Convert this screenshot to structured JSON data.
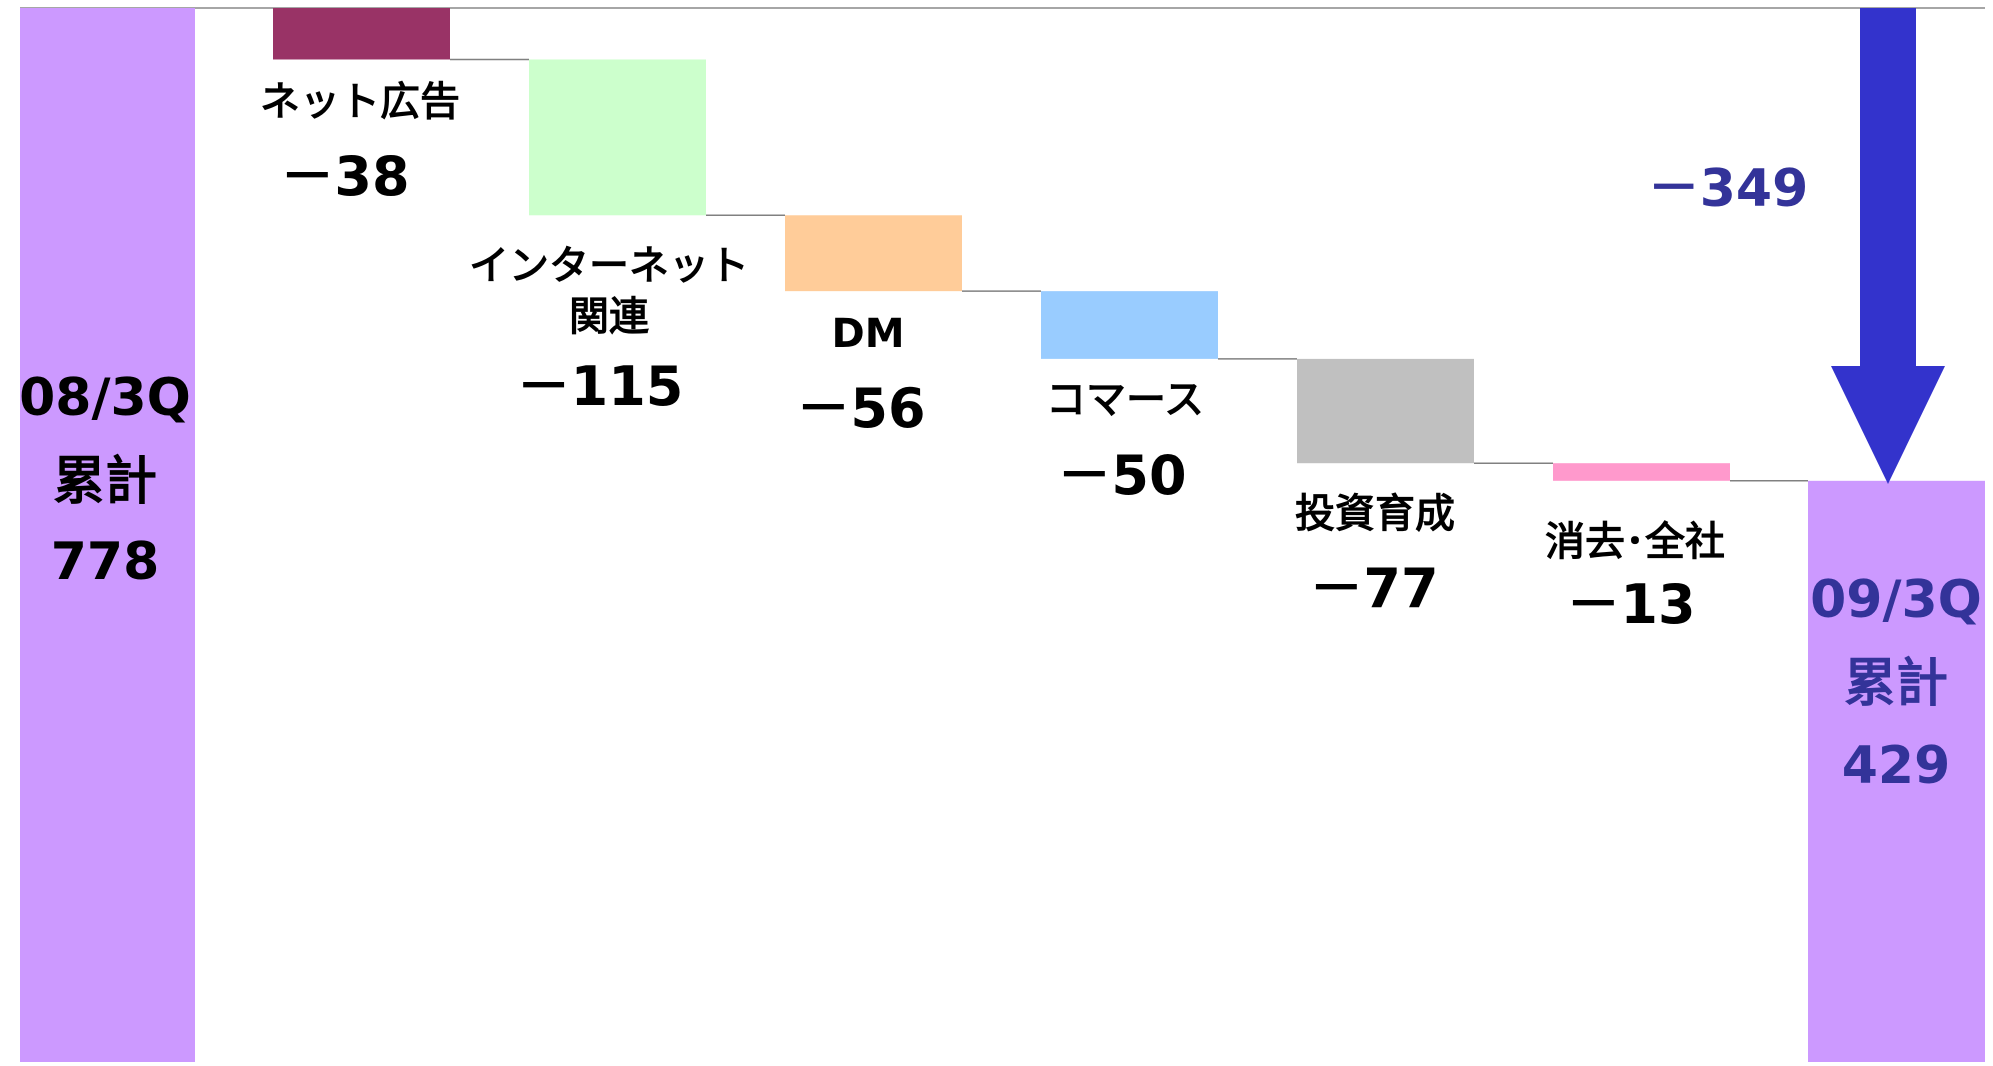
{
  "chart_data": {
    "type": "waterfall",
    "start": {
      "line1": "08/3Q",
      "line2": "累計",
      "value": 778,
      "value_label": "778",
      "color": "#cc99ff",
      "text_color": "#000000"
    },
    "end": {
      "line1": "09/3Q",
      "line2": "累計",
      "value": 429,
      "value_label": "429",
      "color": "#cc99ff",
      "text_color": "#333399"
    },
    "steps": [
      {
        "name_lines": [
          "ネット広告"
        ],
        "value": -38,
        "value_label": "－38",
        "color": "#993366"
      },
      {
        "name_lines": [
          "インターネット",
          "関連"
        ],
        "value": -115,
        "value_label": "－115",
        "color": "#ccffcc"
      },
      {
        "name_lines": [
          "DM"
        ],
        "value": -56,
        "value_label": "－56",
        "color": "#ffcc99"
      },
      {
        "name_lines": [
          "コマース"
        ],
        "value": -50,
        "value_label": "－50",
        "color": "#99ccff"
      },
      {
        "name_lines": [
          "投資育成"
        ],
        "value": -77,
        "value_label": "－77",
        "color": "#c0c0c0"
      },
      {
        "name_lines": [
          "消去･全社"
        ],
        "value": -13,
        "value_label": "－13",
        "color": "#ff99cc"
      }
    ],
    "total_change": {
      "value": -349,
      "label": "－349",
      "color": "#333399",
      "arrow_color": "#3333cc"
    },
    "ylim": [
      0,
      778
    ],
    "grid": false,
    "legend": "none"
  }
}
